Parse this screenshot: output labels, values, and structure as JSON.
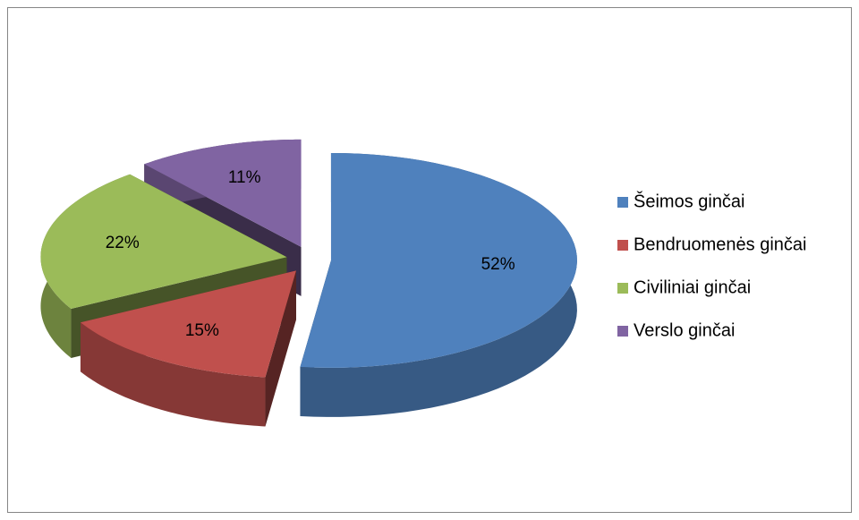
{
  "chart_data": {
    "type": "pie",
    "categories": [
      "Šeimos ginčai",
      "Bendruomenės ginčai",
      "Civiliniai ginčai",
      "Verslo ginčai"
    ],
    "values": [
      52,
      15,
      22,
      11
    ],
    "value_labels": [
      "52%",
      "15%",
      "22%",
      "11%"
    ],
    "colors": [
      "#4f81bd",
      "#c0504d",
      "#9bbb59",
      "#8064a2"
    ],
    "legend": "right"
  }
}
